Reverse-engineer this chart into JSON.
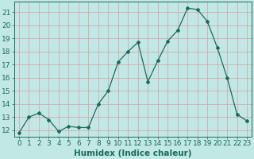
{
  "x": [
    0,
    1,
    2,
    3,
    4,
    5,
    6,
    7,
    8,
    9,
    10,
    11,
    12,
    13,
    14,
    15,
    16,
    17,
    18,
    19,
    20,
    21,
    22,
    23
  ],
  "y": [
    11.8,
    13.0,
    13.3,
    12.8,
    11.9,
    12.3,
    12.2,
    12.2,
    14.0,
    15.0,
    17.2,
    18.0,
    18.7,
    15.7,
    17.3,
    18.8,
    19.6,
    21.3,
    21.2,
    20.3,
    18.3,
    16.0,
    13.2,
    12.7
  ],
  "line_color": "#1a6b5a",
  "marker": "D",
  "markersize": 2.0,
  "linewidth": 0.9,
  "bg_color": "#c2e8e5",
  "grid_color": "#d4a0a0",
  "axis_color": "#1a6b5a",
  "xlabel": "Humidex (Indice chaleur)",
  "ylabel": "",
  "xlim": [
    -0.5,
    23.5
  ],
  "ylim": [
    11.5,
    21.8
  ],
  "yticks": [
    12,
    13,
    14,
    15,
    16,
    17,
    18,
    19,
    20,
    21
  ],
  "xticks": [
    0,
    1,
    2,
    3,
    4,
    5,
    6,
    7,
    8,
    9,
    10,
    11,
    12,
    13,
    14,
    15,
    16,
    17,
    18,
    19,
    20,
    21,
    22,
    23
  ],
  "tick_label_color": "#1a6b5a",
  "tick_label_size": 6.5,
  "xlabel_size": 7.5,
  "xlabel_weight": "bold"
}
